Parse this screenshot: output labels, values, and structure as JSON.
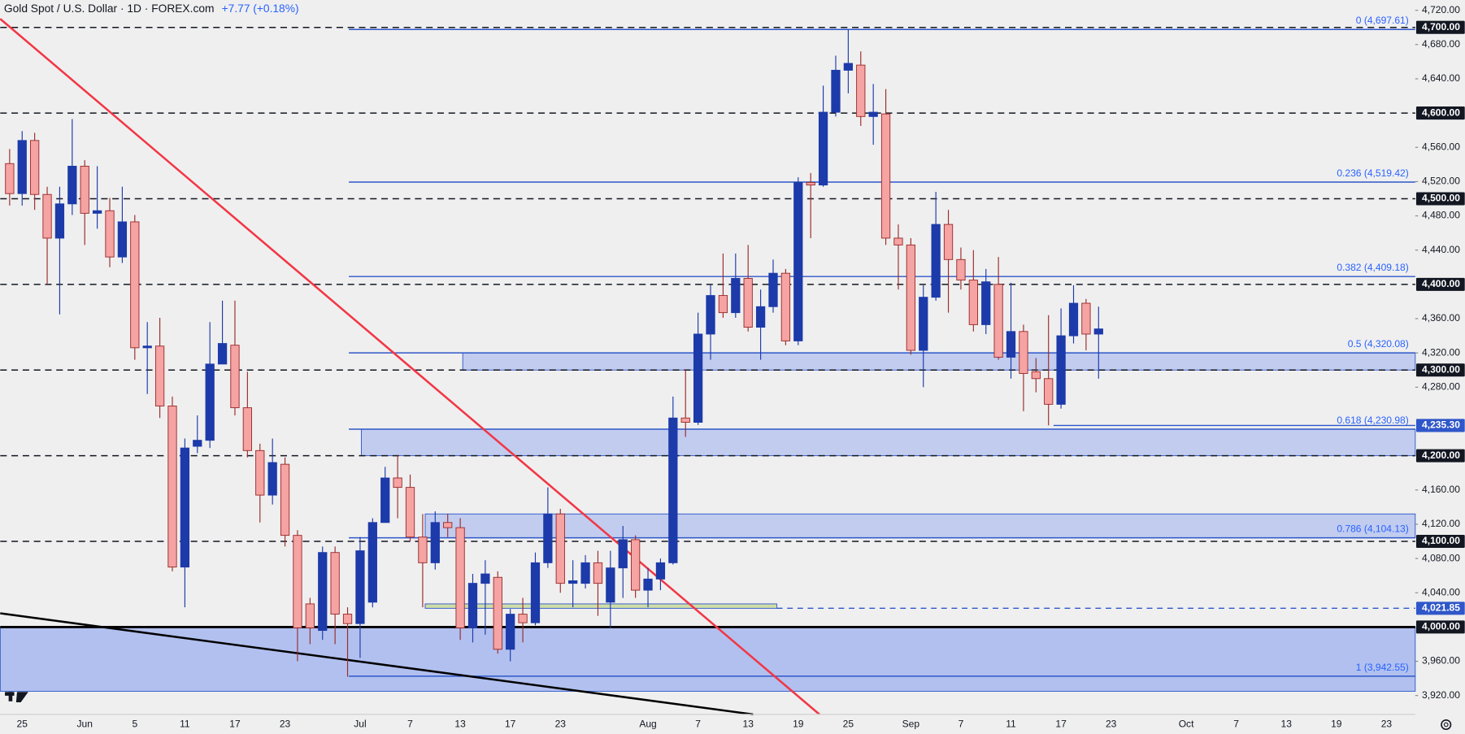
{
  "header": {
    "title": "Gold Spot / U.S. Dollar · 1D · FOREX.com",
    "change": "+7.77 (+0.18%)"
  },
  "chart_data": {
    "type": "candlestick",
    "xlim": [
      -0.75,
      112.3
    ],
    "ylim": [
      3898,
      4732
    ],
    "grid": false,
    "up_color": "#1c3aa9",
    "down_color": "#f5a3a3",
    "down_border": "#9b2a2a",
    "xticks": [
      {
        "value": 1,
        "label": "25"
      },
      {
        "value": 6,
        "label": "Jun"
      },
      {
        "value": 10,
        "label": "5"
      },
      {
        "value": 14,
        "label": "11"
      },
      {
        "value": 18,
        "label": "17"
      },
      {
        "value": 22,
        "label": "23"
      },
      {
        "value": 28,
        "label": "Jul"
      },
      {
        "value": 32,
        "label": "7"
      },
      {
        "value": 36,
        "label": "13"
      },
      {
        "value": 40,
        "label": "17"
      },
      {
        "value": 44,
        "label": "23"
      },
      {
        "value": 51,
        "label": "Aug"
      },
      {
        "value": 55,
        "label": "7"
      },
      {
        "value": 59,
        "label": "13"
      },
      {
        "value": 63,
        "label": "19"
      },
      {
        "value": 67,
        "label": "25"
      },
      {
        "value": 72,
        "label": "Sep"
      },
      {
        "value": 76,
        "label": "7"
      },
      {
        "value": 80,
        "label": "11"
      },
      {
        "value": 84,
        "label": "17"
      },
      {
        "value": 88,
        "label": "23"
      },
      {
        "value": 94,
        "label": "Oct"
      },
      {
        "value": 98,
        "label": "7"
      },
      {
        "value": 102,
        "label": "13"
      },
      {
        "value": 106,
        "label": "19"
      },
      {
        "value": 110,
        "label": "23"
      }
    ],
    "yticks": [
      {
        "value": 4720,
        "label": "4,720.00"
      },
      {
        "value": 4680,
        "label": "4,680.00"
      },
      {
        "value": 4640,
        "label": "4,640.00"
      },
      {
        "value": 4560,
        "label": "4,560.00"
      },
      {
        "value": 4520,
        "label": "4,520.00"
      },
      {
        "value": 4480,
        "label": "4,480.00"
      },
      {
        "value": 4440,
        "label": "4,440.00"
      },
      {
        "value": 4360,
        "label": "4,360.00"
      },
      {
        "value": 4320,
        "label": "4,320.00"
      },
      {
        "value": 4280,
        "label": "4,280.00"
      },
      {
        "value": 4160,
        "label": "4,160.00"
      },
      {
        "value": 4120,
        "label": "4,120.00"
      },
      {
        "value": 4080,
        "label": "4,080.00"
      },
      {
        "value": 4040,
        "label": "4,040.00"
      },
      {
        "value": 3960,
        "label": "3,960.00"
      },
      {
        "value": 3920,
        "label": "3,920.00"
      }
    ],
    "levels": [
      {
        "value": 4700,
        "label": "4,700.00"
      },
      {
        "value": 4600,
        "label": "4,600.00"
      },
      {
        "value": 4500,
        "label": "4,500.00"
      },
      {
        "value": 4400,
        "label": "4,400.00"
      },
      {
        "value": 4300,
        "label": "4,300.00"
      },
      {
        "value": 4200,
        "label": "4,200.00"
      },
      {
        "value": 4100,
        "label": "4,100.00"
      }
    ],
    "support": {
      "value": 4000,
      "label": "4,000.00"
    },
    "highlight_levels": [
      {
        "value": 4235.3,
        "label": "4,235.30",
        "start": 83.4
      },
      {
        "value": 4021.85,
        "label": "4,021.85",
        "start": 61.3
      }
    ],
    "fib_start": 27.1,
    "fibs": [
      {
        "value": 4697.61,
        "label": "0 (4,697.61)"
      },
      {
        "value": 4519.42,
        "label": "0.236 (4,519.42)"
      },
      {
        "value": 4409.18,
        "label": "0.382 (4,409.18)"
      },
      {
        "value": 4320.08,
        "label": "0.5 (4,320.08)"
      },
      {
        "value": 4230.98,
        "label": "0.618 (4,230.98)"
      },
      {
        "value": 4104.13,
        "label": "0.786 (4,104.13)"
      },
      {
        "value": 3942.55,
        "label": "1 (3,942.55)"
      }
    ],
    "zones": [
      {
        "top": 4320.08,
        "bottom": 4300,
        "start": 36.2,
        "end": 112.3,
        "color": "#b8c6ef"
      },
      {
        "top": 4230.98,
        "bottom": 4200,
        "start": 28.1,
        "end": 112.3,
        "color": "#b8c6ef"
      },
      {
        "top": 4132,
        "bottom": 4104.13,
        "start": 33.2,
        "end": 112.3,
        "color": "#b8c6ef"
      },
      {
        "top": 4027,
        "bottom": 4021.85,
        "start": 33.2,
        "end": 61.3,
        "color": "#c9d99a"
      },
      {
        "top": 4000,
        "bottom": 3925,
        "start": -0.75,
        "end": 112.3,
        "color": "#a6b7ef"
      }
    ],
    "trendlines": [
      {
        "color": "#f23645",
        "x": [
          -0.75,
          64.7
        ],
        "y": [
          4710,
          3898
        ]
      },
      {
        "color": "#000000",
        "x": [
          -0.75,
          59.4
        ],
        "y": [
          4016,
          3898
        ]
      }
    ],
    "candles": [
      {
        "open": 4541,
        "high": 4558,
        "low": 4492,
        "close": 4506
      },
      {
        "open": 4506,
        "high": 4579,
        "low": 4492,
        "close": 4568
      },
      {
        "open": 4568,
        "high": 4577,
        "low": 4487,
        "close": 4505
      },
      {
        "open": 4505,
        "high": 4514,
        "low": 4400,
        "close": 4454
      },
      {
        "open": 4454,
        "high": 4514,
        "low": 4365,
        "close": 4494
      },
      {
        "open": 4494,
        "high": 4593,
        "low": 4481,
        "close": 4538
      },
      {
        "open": 4538,
        "high": 4545,
        "low": 4446,
        "close": 4483
      },
      {
        "open": 4483,
        "high": 4538,
        "low": 4465,
        "close": 4486
      },
      {
        "open": 4486,
        "high": 4501,
        "low": 4420,
        "close": 4432
      },
      {
        "open": 4432,
        "high": 4514,
        "low": 4425,
        "close": 4473
      },
      {
        "open": 4473,
        "high": 4481,
        "low": 4312,
        "close": 4326
      },
      {
        "open": 4326,
        "high": 4356,
        "low": 4272,
        "close": 4328
      },
      {
        "open": 4328,
        "high": 4361,
        "low": 4244,
        "close": 4258
      },
      {
        "open": 4258,
        "high": 4269,
        "low": 4065,
        "close": 4070
      },
      {
        "open": 4070,
        "high": 4220,
        "low": 4023,
        "close": 4209
      },
      {
        "open": 4211,
        "high": 4247,
        "low": 4203,
        "close": 4218
      },
      {
        "open": 4218,
        "high": 4356,
        "low": 4209,
        "close": 4307
      },
      {
        "open": 4307,
        "high": 4381,
        "low": 4307,
        "close": 4331
      },
      {
        "open": 4329,
        "high": 4381,
        "low": 4247,
        "close": 4256
      },
      {
        "open": 4256,
        "high": 4298,
        "low": 4198,
        "close": 4206
      },
      {
        "open": 4206,
        "high": 4214,
        "low": 4122,
        "close": 4154
      },
      {
        "open": 4154,
        "high": 4220,
        "low": 4143,
        "close": 4192
      },
      {
        "open": 4190,
        "high": 4198,
        "low": 4094,
        "close": 4107
      },
      {
        "open": 4107,
        "high": 4113,
        "low": 3960,
        "close": 3999
      },
      {
        "open": 4027,
        "high": 4034,
        "low": 3980,
        "close": 3999
      },
      {
        "open": 3996,
        "high": 4094,
        "low": 3985,
        "close": 4087
      },
      {
        "open": 4087,
        "high": 4094,
        "low": 3980,
        "close": 4015
      },
      {
        "open": 4015,
        "high": 4023,
        "low": 3942,
        "close": 4004
      },
      {
        "open": 4004,
        "high": 4105,
        "low": 3964,
        "close": 4089
      },
      {
        "open": 4029,
        "high": 4127,
        "low": 4023,
        "close": 4122
      },
      {
        "open": 4122,
        "high": 4187,
        "low": 4122,
        "close": 4174
      },
      {
        "open": 4174,
        "high": 4201,
        "low": 4127,
        "close": 4163
      },
      {
        "open": 4163,
        "high": 4178,
        "low": 4100,
        "close": 4105
      },
      {
        "open": 4105,
        "high": 4132,
        "low": 4023,
        "close": 4075
      },
      {
        "open": 4075,
        "high": 4135,
        "low": 4067,
        "close": 4122
      },
      {
        "open": 4122,
        "high": 4132,
        "low": 4105,
        "close": 4116
      },
      {
        "open": 4116,
        "high": 4127,
        "low": 3985,
        "close": 3999
      },
      {
        "open": 3999,
        "high": 4062,
        "low": 3982,
        "close": 4051
      },
      {
        "open": 4051,
        "high": 4078,
        "low": 3991,
        "close": 4062
      },
      {
        "open": 4058,
        "high": 4065,
        "low": 3969,
        "close": 3974
      },
      {
        "open": 3974,
        "high": 4021,
        "low": 3960,
        "close": 4015
      },
      {
        "open": 4015,
        "high": 4034,
        "low": 3982,
        "close": 4005
      },
      {
        "open": 4005,
        "high": 4087,
        "low": 4002,
        "close": 4075
      },
      {
        "open": 4075,
        "high": 4163,
        "low": 4069,
        "close": 4132
      },
      {
        "open": 4132,
        "high": 4138,
        "low": 4040,
        "close": 4051
      },
      {
        "open": 4051,
        "high": 4078,
        "low": 4023,
        "close": 4054
      },
      {
        "open": 4051,
        "high": 4084,
        "low": 4045,
        "close": 4075
      },
      {
        "open": 4075,
        "high": 4089,
        "low": 4013,
        "close": 4051
      },
      {
        "open": 4029,
        "high": 4089,
        "low": 3999,
        "close": 4069
      },
      {
        "open": 4069,
        "high": 4118,
        "low": 4034,
        "close": 4102
      },
      {
        "open": 4102,
        "high": 4107,
        "low": 4034,
        "close": 4043
      },
      {
        "open": 4043,
        "high": 4069,
        "low": 4023,
        "close": 4056
      },
      {
        "open": 4056,
        "high": 4080,
        "low": 4043,
        "close": 4075
      },
      {
        "open": 4075,
        "high": 4269,
        "low": 4073,
        "close": 4244
      },
      {
        "open": 4244,
        "high": 4301,
        "low": 4222,
        "close": 4239
      },
      {
        "open": 4239,
        "high": 4367,
        "low": 4236,
        "close": 4342
      },
      {
        "open": 4342,
        "high": 4400,
        "low": 4312,
        "close": 4387
      },
      {
        "open": 4387,
        "high": 4436,
        "low": 4361,
        "close": 4367
      },
      {
        "open": 4367,
        "high": 4436,
        "low": 4361,
        "close": 4407
      },
      {
        "open": 4407,
        "high": 4446,
        "low": 4345,
        "close": 4350
      },
      {
        "open": 4350,
        "high": 4394,
        "low": 4312,
        "close": 4374
      },
      {
        "open": 4374,
        "high": 4429,
        "low": 4367,
        "close": 4413
      },
      {
        "open": 4413,
        "high": 4418,
        "low": 4329,
        "close": 4334
      },
      {
        "open": 4334,
        "high": 4525,
        "low": 4329,
        "close": 4519
      },
      {
        "open": 4519,
        "high": 4530,
        "low": 4454,
        "close": 4516
      },
      {
        "open": 4516,
        "high": 4632,
        "low": 4514,
        "close": 4601
      },
      {
        "open": 4601,
        "high": 4667,
        "low": 4596,
        "close": 4650
      },
      {
        "open": 4650,
        "high": 4697.61,
        "low": 4623,
        "close": 4658
      },
      {
        "open": 4656,
        "high": 4672,
        "low": 4585,
        "close": 4596
      },
      {
        "open": 4596,
        "high": 4634,
        "low": 4563,
        "close": 4601
      },
      {
        "open": 4599,
        "high": 4628,
        "low": 4446,
        "close": 4454
      },
      {
        "open": 4454,
        "high": 4470,
        "low": 4394,
        "close": 4446
      },
      {
        "open": 4446,
        "high": 4454,
        "low": 4318,
        "close": 4323
      },
      {
        "open": 4323,
        "high": 4399,
        "low": 4280,
        "close": 4385
      },
      {
        "open": 4385,
        "high": 4508,
        "low": 4381,
        "close": 4470
      },
      {
        "open": 4470,
        "high": 4487,
        "low": 4367,
        "close": 4429
      },
      {
        "open": 4429,
        "high": 4443,
        "low": 4394,
        "close": 4405
      },
      {
        "open": 4405,
        "high": 4440,
        "low": 4345,
        "close": 4353
      },
      {
        "open": 4353,
        "high": 4418,
        "low": 4342,
        "close": 4403
      },
      {
        "open": 4400,
        "high": 4432,
        "low": 4312,
        "close": 4315
      },
      {
        "open": 4315,
        "high": 4402,
        "low": 4290,
        "close": 4345
      },
      {
        "open": 4345,
        "high": 4353,
        "low": 4252,
        "close": 4296
      },
      {
        "open": 4298,
        "high": 4314,
        "low": 4274,
        "close": 4290
      },
      {
        "open": 4290,
        "high": 4364,
        "low": 4235.3,
        "close": 4260
      },
      {
        "open": 4260,
        "high": 4372,
        "low": 4255,
        "close": 4340
      },
      {
        "open": 4340,
        "high": 4399,
        "low": 4331,
        "close": 4378
      },
      {
        "open": 4378,
        "high": 4383,
        "low": 4323,
        "close": 4342
      },
      {
        "open": 4342,
        "high": 4374,
        "low": 4290,
        "close": 4348
      }
    ]
  }
}
